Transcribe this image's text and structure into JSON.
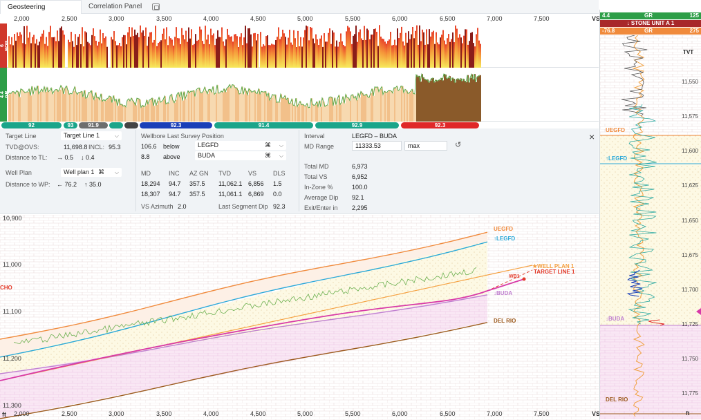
{
  "tabs": [
    {
      "label": "Geosteering",
      "active": true
    },
    {
      "label": "Correlation Panel",
      "active": false
    }
  ],
  "top_axis": {
    "ticks": [
      "2,000",
      "2,500",
      "3,000",
      "3,500",
      "4,000",
      "4,500",
      "5,000",
      "5,500",
      "6,000",
      "6,500",
      "7,000",
      "7,500"
    ],
    "end_label": "VS"
  },
  "tracks": {
    "rop": {
      "name": "ROP",
      "max": "311",
      "min": "6"
    },
    "gr": {
      "name": "GR",
      "max": "125",
      "min": "4.4"
    }
  },
  "zone_ribbon": [
    {
      "label": "92",
      "color": "#1aa58a"
    },
    {
      "label": "93",
      "color": "#1aa58a"
    },
    {
      "label": "91.9",
      "color": "#6e6e6e"
    },
    {
      "label": "",
      "color": "#1aa58a"
    },
    {
      "label": "",
      "color": "#444444"
    },
    {
      "label": "92.3",
      "color": "#1a3fb8"
    },
    {
      "label": "91.4",
      "color": "#1aa58a"
    },
    {
      "label": "92.9",
      "color": "#1aa58a"
    },
    {
      "label": "92.3",
      "color": "#e02828"
    }
  ],
  "panel": {
    "target_line_label": "Target Line",
    "target_line_value": "Target Line 1",
    "tvd_label": "TVD@OVS:",
    "tvd_value": "11,698.8",
    "incl_label": "INCL:",
    "incl_value": "95.3",
    "dist_tl_label": "Distance to TL:",
    "dist_tl_right": "→ 0.5",
    "dist_tl_down": "↓ 0.4",
    "well_plan_label": "Well Plan",
    "well_plan_value": "Well plan 1",
    "dist_wp_label": "Distance to WP:",
    "dist_wp_left": "← 76.2",
    "dist_wp_up": "↑ 35.0",
    "survey_title": "Wellbore Last Survey Position",
    "survey_rows": [
      {
        "value": "106.6",
        "rel": "below",
        "formation": "LEGFD"
      },
      {
        "value": "8.8",
        "rel": "above",
        "formation": "BUDA"
      }
    ],
    "survey_headers": [
      "MD",
      "INC",
      "AZ GN",
      "TVD",
      "VS",
      "DLS"
    ],
    "survey_data": [
      [
        "18,294",
        "94.7",
        "357.5",
        "11,062.1",
        "6,856",
        "1.5"
      ],
      [
        "18,307",
        "94.7",
        "357.5",
        "11,061.1",
        "6,869",
        "0.0"
      ]
    ],
    "vs_azimuth_label": "VS Azimuth",
    "vs_azimuth_value": "2.0",
    "last_dip_label": "Last Segment Dip",
    "last_dip_value": "92.3",
    "interval_label": "Interval",
    "interval_value": "LEGFD – BUDA",
    "md_range_label": "MD Range",
    "md_range_from": "11333.53",
    "md_range_to": "max",
    "stats": [
      {
        "label": "Total MD",
        "value": "6,973"
      },
      {
        "label": "Total VS",
        "value": "6,952"
      },
      {
        "label": "In-Zone %",
        "value": "100.0"
      },
      {
        "label": "Average Dip",
        "value": "92.1"
      },
      {
        "label": "Exit/Enter in",
        "value": "2,295"
      }
    ]
  },
  "cross_section": {
    "y_ticks": [
      "10,900",
      "11,000",
      "11,100",
      "11,200",
      "11,300"
    ],
    "x_ticks": [
      "2,000",
      "2,500",
      "3,000",
      "3,500",
      "4,000",
      "4,500",
      "5,000",
      "5,500",
      "6,000",
      "6,500",
      "7,000",
      "7,500"
    ],
    "x_unit": "ft",
    "left_label": "CHO",
    "end_label": "VS",
    "formations": [
      {
        "name": "UEGFD",
        "color": "#f08a3c"
      },
      {
        "name": "↑LEGFD",
        "color": "#2aa8d8"
      },
      {
        "name": "↓BUDA",
        "color": "#c080d0"
      },
      {
        "name": "DEL RIO",
        "color": "#9c5a1e"
      }
    ],
    "well_plan_label": "★WELL PLAN 1",
    "target_line_label": "TARGET LINE 1",
    "wb_label": "WB1"
  },
  "right_panel": {
    "gr_min": "4.4",
    "gr_name": "GR",
    "gr_max": "125",
    "stone_label": "↓ STONE UNIT A 1",
    "sub_min": "-76.8",
    "sub_name": "GR",
    "sub_max": "275",
    "tvt_label": "TVT",
    "depth_ticks": [
      "11,550",
      "11,575",
      "11,600",
      "11,625",
      "11,650",
      "11,675",
      "11,700",
      "11,725",
      "11,750",
      "11,775"
    ],
    "formations": [
      {
        "name": "UEGFD",
        "color": "#f08a3c"
      },
      {
        "name": "↑LEGFD",
        "color": "#2aa8d8"
      },
      {
        "name": "↓BUDA",
        "color": "#c080d0"
      },
      {
        "name": "DEL RIO",
        "color": "#9c5a1e"
      }
    ],
    "unit": "ft"
  }
}
